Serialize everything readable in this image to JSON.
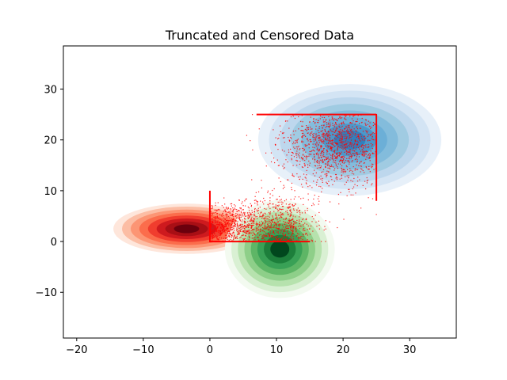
{
  "chart_data": {
    "type": "scatter",
    "title": "Truncated and Censored Data",
    "xlabel": "",
    "ylabel": "",
    "xlim": [
      -22,
      37
    ],
    "ylim": [
      -19,
      38.5
    ],
    "xticks": [
      -20,
      -10,
      0,
      10,
      20,
      30
    ],
    "yticks": [
      -10,
      0,
      10,
      20,
      30
    ],
    "xtick_labels": [
      "−20",
      "−10",
      "0",
      "10",
      "20",
      "30"
    ],
    "ytick_labels": [
      "−10",
      "0",
      "10",
      "20",
      "30"
    ],
    "grid": false,
    "legend": false,
    "truncation_bounds": {
      "x": [
        0,
        25
      ],
      "y": [
        0,
        25
      ]
    },
    "density_series": [
      {
        "name": "",
        "palette": "Reds",
        "center": [
          -3.5,
          2.5
        ],
        "spread": [
          4,
          1.8
        ],
        "color": "#a50f15"
      },
      {
        "name": "",
        "palette": "Greens",
        "center": [
          10.5,
          -1.5
        ],
        "spread": [
          3,
          3.5
        ],
        "color": "#00441b"
      },
      {
        "name": "",
        "palette": "Blues",
        "center": [
          21,
          20
        ],
        "spread": [
          5,
          4
        ],
        "color": "#08519c"
      }
    ],
    "scatter_series": [
      {
        "name": "",
        "color": "#ff0000",
        "description_center": [
          3.5,
          2.5
        ],
        "marker": "point"
      },
      {
        "name": "",
        "color": "#ff0000",
        "description_center": [
          10.5,
          2.5
        ],
        "marker": "point"
      },
      {
        "name": "",
        "color": "#ff0000",
        "description_center": [
          19,
          19
        ],
        "marker": "point"
      }
    ]
  }
}
